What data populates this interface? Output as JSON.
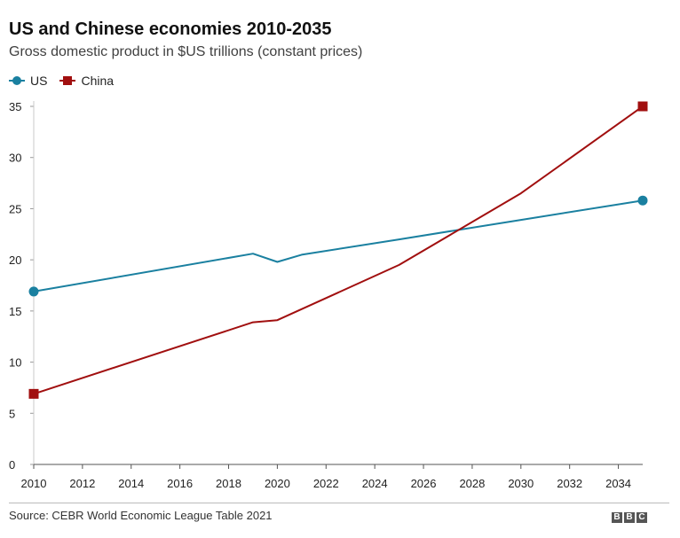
{
  "chart_data": {
    "type": "line",
    "title": "US and Chinese economies 2010-2035",
    "subtitle": "Gross domestic product in $US trillions (constant prices)",
    "xlabel": "",
    "ylabel": "",
    "xlim": [
      2010,
      2035
    ],
    "ylim": [
      0,
      35
    ],
    "xticks": [
      2010,
      2012,
      2014,
      2016,
      2018,
      2020,
      2022,
      2024,
      2026,
      2028,
      2030,
      2032,
      2034
    ],
    "yticks": [
      0,
      5,
      10,
      15,
      20,
      25,
      30,
      35
    ],
    "grid": false,
    "legend_position": "top-left",
    "series": [
      {
        "name": "US",
        "color": "#1a80a0",
        "marker": "circle",
        "points": [
          [
            2010,
            16.9
          ],
          [
            2019,
            20.6
          ],
          [
            2020,
            19.8
          ],
          [
            2021,
            20.5
          ],
          [
            2025,
            22.0
          ],
          [
            2030,
            23.9
          ],
          [
            2035,
            25.8
          ]
        ]
      },
      {
        "name": "China",
        "color": "#a10f0f",
        "marker": "square",
        "points": [
          [
            2010,
            6.9
          ],
          [
            2019,
            13.9
          ],
          [
            2020,
            14.1
          ],
          [
            2025,
            19.5
          ],
          [
            2030,
            26.5
          ],
          [
            2035,
            35.0
          ]
        ]
      }
    ]
  },
  "footer": {
    "source": "Source: CEBR World Economic League Table 2021",
    "logo": [
      "B",
      "B",
      "C"
    ]
  }
}
